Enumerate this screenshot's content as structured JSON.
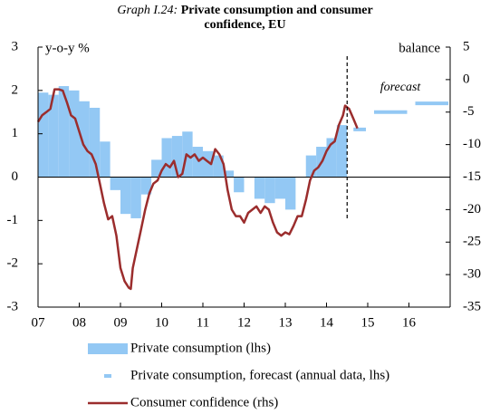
{
  "chart_data": {
    "type": "combo",
    "title_prefix": "Graph I.24:",
    "title": "Private consumption and consumer confidence, EU",
    "ylabel": "y-o-y %",
    "y2label": "balance",
    "annotation": "forecast",
    "forecast_start": 2014.5,
    "xlim": [
      2007,
      2017
    ],
    "xticks": [
      {
        "value": 2007,
        "label": "07"
      },
      {
        "value": 2008,
        "label": "08"
      },
      {
        "value": 2009,
        "label": "09"
      },
      {
        "value": 2010,
        "label": "10"
      },
      {
        "value": 2011,
        "label": "11"
      },
      {
        "value": 2012,
        "label": "12"
      },
      {
        "value": 2013,
        "label": "13"
      },
      {
        "value": 2014,
        "label": "14"
      },
      {
        "value": 2015,
        "label": "15"
      },
      {
        "value": 2016,
        "label": "16"
      }
    ],
    "ylim": [
      -3,
      3
    ],
    "yticks": [
      -3,
      -2,
      -1,
      0,
      1,
      2,
      3
    ],
    "y2lim": [
      -35,
      5
    ],
    "y2ticks": [
      -35,
      -30,
      -25,
      -20,
      -15,
      -10,
      -5,
      0,
      5
    ],
    "series": [
      {
        "name": "Private consumption (lhs)",
        "type": "bar",
        "color": "#93c8f4",
        "x": [
          2007,
          2007.25,
          2007.5,
          2007.75,
          2008,
          2008.25,
          2008.5,
          2008.75,
          2009,
          2009.25,
          2009.5,
          2009.75,
          2010,
          2010.25,
          2010.5,
          2010.75,
          2011,
          2011.25,
          2011.5,
          2011.75,
          2012,
          2012.25,
          2012.5,
          2012.75,
          2013,
          2013.25,
          2013.5,
          2013.75,
          2014,
          2014.25
        ],
        "values": [
          1.95,
          1.9,
          2.1,
          2.0,
          1.75,
          1.6,
          0.82,
          -0.3,
          -0.85,
          -0.95,
          -0.4,
          0.4,
          0.9,
          0.95,
          1.05,
          0.7,
          0.6,
          0.5,
          0.15,
          -0.35,
          0.0,
          -0.5,
          -0.6,
          -0.5,
          -0.75,
          0.0,
          0.5,
          0.7,
          0.9,
          1.2
        ]
      },
      {
        "name": "Private consumption, forecast (annual data, lhs)",
        "type": "dash",
        "color": "#93c8f4",
        "x": [
          2014,
          2015,
          2016
        ],
        "values": [
          1.1,
          1.5,
          1.7
        ]
      },
      {
        "name": "Consumer confidence (rhs)",
        "type": "line",
        "color": "#9b2d2d",
        "axis": "y2",
        "x": [
          2007.0,
          2007.1,
          2007.2,
          2007.3,
          2007.4,
          2007.5,
          2007.6,
          2007.7,
          2007.8,
          2007.9,
          2008.0,
          2008.1,
          2008.2,
          2008.3,
          2008.4,
          2008.5,
          2008.6,
          2008.7,
          2008.8,
          2008.9,
          2009.0,
          2009.1,
          2009.2,
          2009.25,
          2009.3,
          2009.4,
          2009.5,
          2009.6,
          2009.7,
          2009.8,
          2009.9,
          2010.0,
          2010.1,
          2010.2,
          2010.3,
          2010.4,
          2010.5,
          2010.6,
          2010.7,
          2010.8,
          2010.9,
          2011.0,
          2011.1,
          2011.2,
          2011.3,
          2011.4,
          2011.5,
          2011.6,
          2011.7,
          2011.8,
          2011.9,
          2012.0,
          2012.1,
          2012.2,
          2012.3,
          2012.4,
          2012.5,
          2012.6,
          2012.7,
          2012.8,
          2012.9,
          2013.0,
          2013.1,
          2013.2,
          2013.3,
          2013.4,
          2013.5,
          2013.6,
          2013.7,
          2013.8,
          2013.9,
          2014.0,
          2014.1,
          2014.2,
          2014.3,
          2014.4,
          2014.45,
          2014.55,
          2014.65,
          2014.75
        ],
        "values": [
          -6.5,
          -5.5,
          -5,
          -4.5,
          -1.5,
          -1.5,
          -1.7,
          -3.5,
          -5.5,
          -6,
          -8,
          -10,
          -11,
          -11.5,
          -13,
          -16,
          -19,
          -21.5,
          -21,
          -24,
          -29,
          -31,
          -32,
          -32.2,
          -29,
          -26,
          -23,
          -20,
          -17.5,
          -16,
          -15.5,
          -14,
          -13,
          -13.5,
          -12.5,
          -15,
          -14.5,
          -11.5,
          -12,
          -11.5,
          -12.5,
          -12,
          -12.5,
          -13,
          -10.7,
          -11.5,
          -13,
          -17,
          -20,
          -21,
          -21,
          -22,
          -20.5,
          -20,
          -19.5,
          -20.5,
          -19.5,
          -20,
          -22,
          -23.5,
          -24,
          -23.5,
          -23.8,
          -22.5,
          -21,
          -21,
          -18.5,
          -15.5,
          -14,
          -13.5,
          -12.5,
          -11,
          -10,
          -9.5,
          -7,
          -5.5,
          -4,
          -4.5,
          -6,
          -7.5
        ]
      }
    ]
  }
}
